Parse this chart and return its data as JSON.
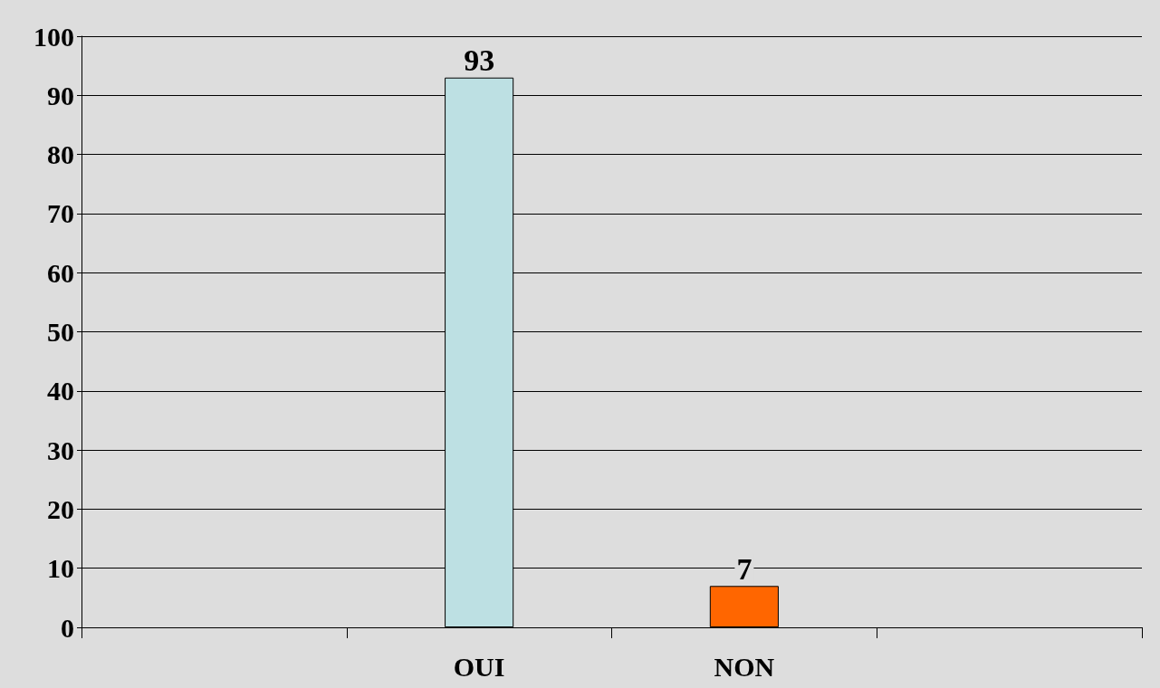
{
  "chart_data": {
    "type": "bar",
    "categories": [
      null,
      "OUI",
      "NON",
      null
    ],
    "values": [
      null,
      93,
      7,
      null
    ],
    "colors": [
      null,
      "#bde0e3",
      "#ff6600",
      null
    ],
    "ylim": [
      0,
      100
    ],
    "yticks": [
      0,
      10,
      20,
      30,
      40,
      50,
      60,
      70,
      80,
      90,
      100
    ],
    "grid": "y",
    "data_labels": true
  }
}
